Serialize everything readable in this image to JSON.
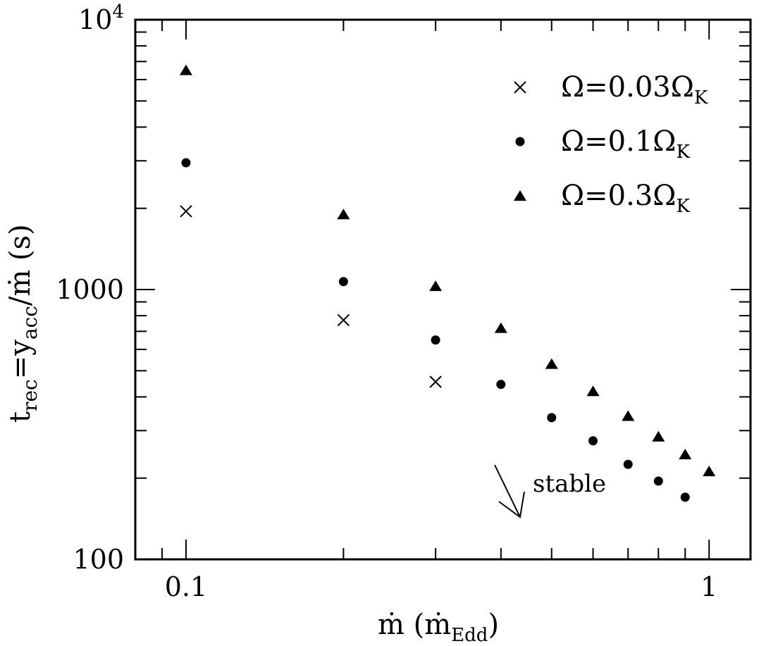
{
  "chart_data": {
    "type": "scatter",
    "x_scale": "log",
    "y_scale": "log",
    "xlim": [
      0.08,
      1.2
    ],
    "ylim": [
      100,
      10000
    ],
    "grid": false,
    "legend_position": "top-right",
    "xlabel": {
      "main": "ṁ  (ṁ",
      "sub": "Edd",
      "close": ")"
    },
    "ylabel": {
      "t": "t",
      "t_sub": "rec",
      "eq": "=y",
      "y_sub": "acc",
      "tail": "/ṁ  (s)"
    },
    "x_ticks": [
      {
        "value": 0.1,
        "label": "0.1"
      },
      {
        "value": 1,
        "label": "1"
      }
    ],
    "y_ticks": [
      {
        "value": 100,
        "label": "100"
      },
      {
        "value": 1000,
        "label": "1000"
      },
      {
        "value": 10000,
        "label": "10",
        "sup": "4"
      }
    ],
    "series": [
      {
        "name": "Ω=0.03Ω_K",
        "legend": {
          "text": "Ω=0.03Ω",
          "sub": "K"
        },
        "marker": "cross",
        "points": [
          [
            0.1,
            1950
          ],
          [
            0.2,
            770
          ],
          [
            0.3,
            455
          ]
        ]
      },
      {
        "name": "Ω=0.1Ω_K",
        "legend": {
          "text": "Ω=0.1Ω",
          "sub": "K"
        },
        "marker": "circle",
        "points": [
          [
            0.1,
            2950
          ],
          [
            0.2,
            1070
          ],
          [
            0.3,
            650
          ],
          [
            0.4,
            445
          ],
          [
            0.5,
            335
          ],
          [
            0.6,
            275
          ],
          [
            0.7,
            225
          ],
          [
            0.8,
            195
          ],
          [
            0.9,
            170
          ]
        ]
      },
      {
        "name": "Ω=0.3Ω_K",
        "legend": {
          "text": "Ω=0.3Ω",
          "sub": "K"
        },
        "marker": "triangle",
        "points": [
          [
            0.1,
            6500
          ],
          [
            0.2,
            1900
          ],
          [
            0.3,
            1030
          ],
          [
            0.4,
            720
          ],
          [
            0.5,
            530
          ],
          [
            0.6,
            420
          ],
          [
            0.7,
            340
          ],
          [
            0.8,
            285
          ],
          [
            0.9,
            245
          ],
          [
            1.0,
            212
          ]
        ]
      }
    ],
    "annotation": {
      "text": "stable",
      "arrow": "down-right"
    }
  }
}
